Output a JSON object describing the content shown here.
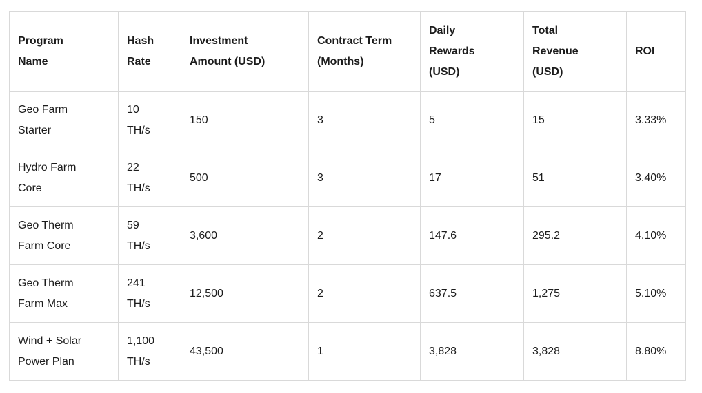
{
  "table_display": {
    "headers": [
      "Program\nName",
      "Hash\nRate",
      "Investment\nAmount (USD)",
      "Contract Term\n(Months)",
      "Daily\nRewards\n(USD)",
      "Total\nRevenue\n(USD)",
      "ROI"
    ],
    "rows": [
      [
        "Geo Farm\nStarter",
        "10\nTH/s",
        "150",
        "3",
        "5",
        "15",
        "3.33%"
      ],
      [
        "Hydro Farm\nCore",
        "22\nTH/s",
        "500",
        "3",
        "17",
        "51",
        "3.40%"
      ],
      [
        "Geo Therm\nFarm Core",
        "59\nTH/s",
        "3,600",
        "2",
        "147.6",
        "295.2",
        "4.10%"
      ],
      [
        "Geo Therm\nFarm Max",
        "241\nTH/s",
        "12,500",
        "2",
        "637.5",
        "1,275",
        "5.10%"
      ],
      [
        "Wind + Solar\nPower Plan",
        "1,100\nTH/s",
        "43,500",
        "1",
        "3,828",
        "3,828",
        "8.80%"
      ]
    ]
  },
  "chart_data": {
    "type": "table",
    "title": "",
    "columns": [
      "Program Name",
      "Hash Rate",
      "Investment Amount (USD)",
      "Contract Term (Months)",
      "Daily Rewards (USD)",
      "Total Revenue (USD)",
      "ROI"
    ],
    "rows": [
      {
        "program_name": "Geo Farm Starter",
        "hash_rate": "10 TH/s",
        "investment_amount_usd": 150,
        "contract_term_months": 3,
        "daily_rewards_usd": 5,
        "total_revenue_usd": 15,
        "roi": "3.33%"
      },
      {
        "program_name": "Hydro Farm Core",
        "hash_rate": "22 TH/s",
        "investment_amount_usd": 500,
        "contract_term_months": 3,
        "daily_rewards_usd": 17,
        "total_revenue_usd": 51,
        "roi": "3.40%"
      },
      {
        "program_name": "Geo Therm Farm Core",
        "hash_rate": "59 TH/s",
        "investment_amount_usd": 3600,
        "contract_term_months": 2,
        "daily_rewards_usd": 147.6,
        "total_revenue_usd": 295.2,
        "roi": "4.10%"
      },
      {
        "program_name": "Geo Therm Farm Max",
        "hash_rate": "241 TH/s",
        "investment_amount_usd": 12500,
        "contract_term_months": 2,
        "daily_rewards_usd": 637.5,
        "total_revenue_usd": 1275,
        "roi": "5.10%"
      },
      {
        "program_name": "Wind + Solar Power Plan",
        "hash_rate": "1,100 TH/s",
        "investment_amount_usd": 43500,
        "contract_term_months": 1,
        "daily_rewards_usd": 3828,
        "total_revenue_usd": 3828,
        "roi": "8.80%"
      }
    ],
    "colors": {
      "border": "#d9d9d9",
      "text": "#1c1c1c",
      "background": "#ffffff"
    },
    "layout": {
      "header_bold": true,
      "grid": true
    }
  }
}
